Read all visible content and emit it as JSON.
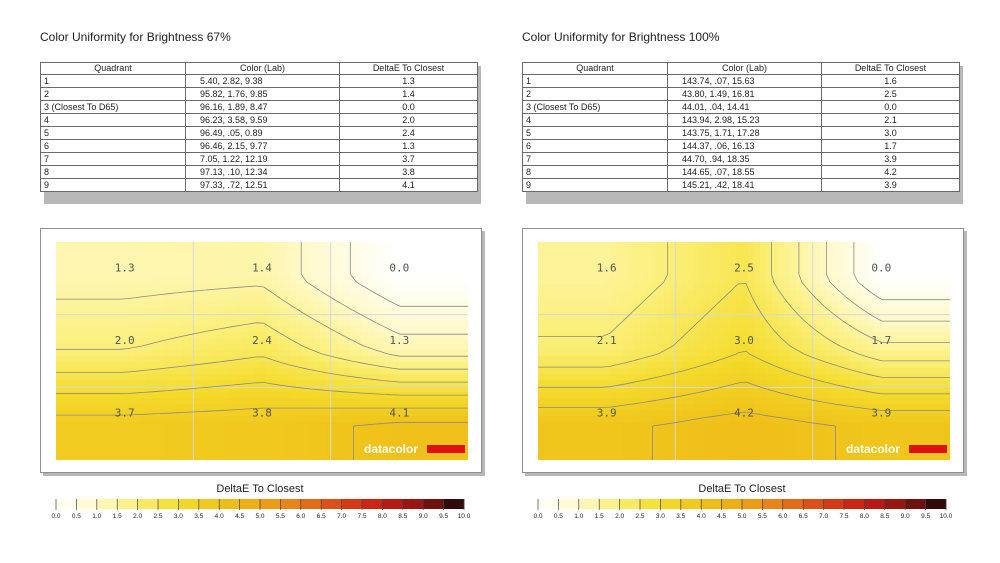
{
  "chart_data": [
    {
      "type": "heatmap",
      "title": "Color Uniformity for Brightness 67%",
      "table": {
        "headers": [
          "Quadrant",
          "Color (Lab)",
          "DeltaE To Closest"
        ],
        "rows": [
          [
            "1",
            "5.40,  2.82,  9.38",
            "1.3"
          ],
          [
            "2",
            "95.82,  1.76,  9.85",
            "1.4"
          ],
          [
            "3 (Closest To D65)",
            "96.16,  1.89,  8.47",
            "0.0"
          ],
          [
            "4",
            "96.23,  3.58,  9.59",
            "2.0"
          ],
          [
            "5",
            "96.49,  .05,  0.89",
            "2.4"
          ],
          [
            "6",
            "96.46,  2.15,  9.77",
            "1.3"
          ],
          [
            "7",
            "7.05,  1.22,  12.19",
            "3.7"
          ],
          [
            "8",
            "97.13,  .10,  12.34",
            "3.8"
          ],
          [
            "9",
            "97.33,  .72,  12.51",
            "4.1"
          ]
        ]
      },
      "grid_values": [
        [
          "1.3",
          "1.4",
          "0.0"
        ],
        [
          "2.0",
          "2.4",
          "1.3"
        ],
        [
          "3.7",
          "3.8",
          "4.1"
        ]
      ],
      "logo": "datacolor",
      "scale_title": "DeltaE To Closest",
      "scale_ticks": [
        "0.0",
        "0.5",
        "1.0",
        "1.5",
        "2.0",
        "2.5",
        "3.0",
        "3.5",
        "4.0",
        "4.5",
        "5.0",
        "5.5",
        "6.0",
        "6.5",
        "7.0",
        "7.5",
        "8.0",
        "8.5",
        "9.0",
        "9.5",
        "10.0"
      ],
      "scale_range": [
        0,
        10
      ]
    },
    {
      "type": "heatmap",
      "title": "Color Uniformity for Brightness 100%",
      "table": {
        "headers": [
          "Quadrant",
          "Color (Lab)",
          "DeltaE To Closest"
        ],
        "rows": [
          [
            "1",
            "143.74,  .07,  15.63",
            "1.6"
          ],
          [
            "2",
            "43.80,  1.49,  16.81",
            "2.5"
          ],
          [
            "3 (Closest To D65)",
            "44.01,  .04,  14.41",
            "0.0"
          ],
          [
            "4",
            "143.94,  2.98,  15.23",
            "2.1"
          ],
          [
            "5",
            "143.75,  1.71,  17.28",
            "3.0"
          ],
          [
            "6",
            "144.37,  .06,  16.13",
            "1.7"
          ],
          [
            "7",
            "44.70,  .94,  18.35",
            "3.9"
          ],
          [
            "8",
            "144.65,  .07,  18.55",
            "4.2"
          ],
          [
            "9",
            "145.21,  .42,  18.41",
            "3.9"
          ]
        ]
      },
      "grid_values": [
        [
          "1.6",
          "2.5",
          "0.0"
        ],
        [
          "2.1",
          "3.0",
          "1.7"
        ],
        [
          "3.9",
          "4.2",
          "3.9"
        ]
      ],
      "logo": "datacolor",
      "scale_title": "DeltaE To Closest",
      "scale_ticks": [
        "0.0",
        "0.5",
        "1.0",
        "1.5",
        "2.0",
        "2.5",
        "3.0",
        "3.5",
        "4.0",
        "4.5",
        "5.0",
        "5.5",
        "6.0",
        "6.5",
        "7.0",
        "7.5",
        "8.0",
        "8.5",
        "9.0",
        "9.5",
        "10.0"
      ],
      "scale_range": [
        0,
        10
      ]
    }
  ],
  "colors": {
    "scale_stops": [
      "#ffffff",
      "#fff9c8",
      "#fbef78",
      "#f4dc2c",
      "#f0c41a",
      "#eda616",
      "#e6781a",
      "#d84418",
      "#c51c14",
      "#8a1410",
      "#120808"
    ],
    "logo_red": "#e01010",
    "contour": "#8a8a8a",
    "grid_line": "#d8d8d8"
  }
}
